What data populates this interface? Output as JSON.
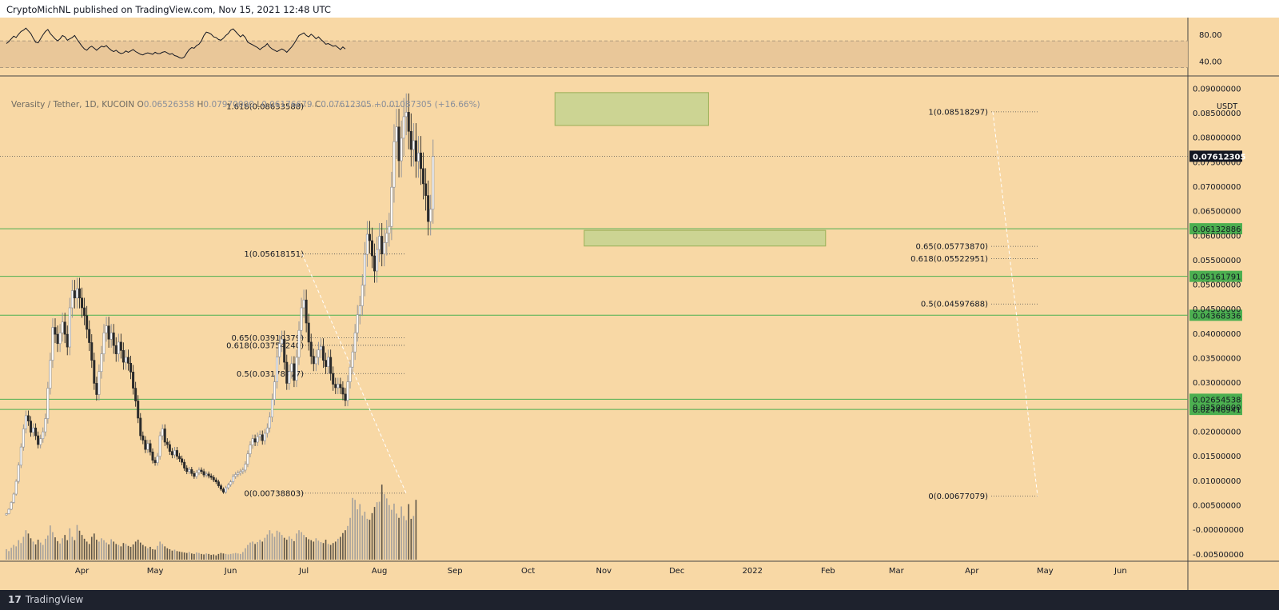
{
  "header": {
    "publisher_line": "CryptoMichNL published on TradingView.com, Nov 15, 2021 12:48 UTC"
  },
  "footer": {
    "logo_mark": "17",
    "brand": "TradingView"
  },
  "colors": {
    "background": "#f8d8a5",
    "frame": "#1e222d",
    "up": "#8a8f9a",
    "down": "#2a2a2a",
    "level_line": "#4caf50",
    "level_badge": "#4caf50",
    "price_badge": "#131722",
    "zone_fill": "#c5d490",
    "zone_stroke": "#8aa84a"
  },
  "chart_data": [
    {
      "type": "line",
      "title": "RSI",
      "ylim": [
        20,
        100
      ],
      "yticks": [
        "80.00",
        "40.00"
      ],
      "band": [
        30,
        70
      ],
      "values": [
        66,
        69,
        73,
        77,
        75,
        80,
        84,
        86,
        89,
        85,
        81,
        74,
        68,
        67,
        73,
        79,
        84,
        87,
        81,
        77,
        73,
        70,
        73,
        78,
        76,
        71,
        73,
        75,
        78,
        72,
        67,
        62,
        58,
        56,
        60,
        62,
        59,
        56,
        59,
        62,
        61,
        63,
        59,
        56,
        54,
        56,
        53,
        51,
        52,
        55,
        53,
        55,
        57,
        54,
        52,
        50,
        49,
        51,
        52,
        51,
        50,
        53,
        51,
        51,
        53,
        54,
        52,
        50,
        51,
        48,
        47,
        45,
        44,
        46,
        52,
        57,
        60,
        59,
        63,
        65,
        70,
        78,
        83,
        82,
        80,
        76,
        75,
        72,
        71,
        74,
        78,
        81,
        86,
        88,
        84,
        80,
        76,
        79,
        75,
        68,
        66,
        64,
        62,
        60,
        57,
        60,
        62,
        66,
        61,
        58,
        56,
        54,
        56,
        58,
        56,
        53,
        57,
        61,
        66,
        72,
        78,
        80,
        82,
        78,
        76,
        80,
        77,
        73,
        76,
        72,
        69,
        65,
        66,
        64,
        62,
        63,
        60,
        57,
        61,
        58
      ]
    },
    {
      "type": "candlestick",
      "title": "Verasity / Tether, 1D, KUCOIN",
      "ohlc_legend": {
        "symbol": "Verasity / Tether, 1D, KUCOIN",
        "o_label": "O",
        "o": "0.06526358",
        "h_label": "H",
        "h": "0.07970000",
        "l_label": "L",
        "l": "0.06176679",
        "c_label": "C",
        "c": "0.07612305",
        "change": "+0.01087305 (+16.66%)"
      },
      "ylabel": "USDT",
      "ylim": [
        -0.0065,
        0.0925
      ],
      "yticks": [
        "0.09000000",
        "0.08500000",
        "0.08000000",
        "0.07500000",
        "0.07000000",
        "0.06500000",
        "0.06000000",
        "0.05500000",
        "0.05000000",
        "0.04500000",
        "0.04000000",
        "0.03500000",
        "0.03000000",
        "0.02500000",
        "0.02000000",
        "0.01500000",
        "0.01000000",
        "0.00500000",
        "-0.00000000",
        "-0.00500000"
      ],
      "xticks": [
        "Apr",
        "May",
        "Jun",
        "Jul",
        "Aug",
        "Sep",
        "Oct",
        "Nov",
        "Dec",
        "2022",
        "Feb",
        "Mar",
        "Apr",
        "May",
        "Jun"
      ],
      "x_start": "2021-03-01",
      "close": [
        0.0032,
        0.0041,
        0.0055,
        0.0072,
        0.0098,
        0.0131,
        0.0168,
        0.0205,
        0.0232,
        0.0221,
        0.0198,
        0.0207,
        0.0191,
        0.0173,
        0.0185,
        0.0199,
        0.0226,
        0.0288,
        0.0345,
        0.0412,
        0.0398,
        0.0379,
        0.0401,
        0.0423,
        0.0398,
        0.0372,
        0.0452,
        0.0487,
        0.0472,
        0.0491,
        0.0472,
        0.0452,
        0.0436,
        0.0408,
        0.0381,
        0.0345,
        0.0298,
        0.0275,
        0.0322,
        0.0358,
        0.0401,
        0.0415,
        0.0388,
        0.0401,
        0.0375,
        0.0358,
        0.0382,
        0.0365,
        0.0341,
        0.0351,
        0.0339,
        0.0321,
        0.0288,
        0.0262,
        0.0227,
        0.0191,
        0.0182,
        0.0163,
        0.0175,
        0.0158,
        0.0141,
        0.0136,
        0.0149,
        0.0191,
        0.0205,
        0.0178,
        0.0173,
        0.0159,
        0.0152,
        0.0161,
        0.0149,
        0.0144,
        0.0137,
        0.0125,
        0.0118,
        0.0122,
        0.0114,
        0.0108,
        0.0116,
        0.0121,
        0.0118,
        0.0111,
        0.0113,
        0.0109,
        0.0106,
        0.0101,
        0.0097,
        0.0089,
        0.0082,
        0.0076,
        0.0085,
        0.0091,
        0.0097,
        0.0108,
        0.0112,
        0.0115,
        0.0118,
        0.0121,
        0.0133,
        0.0154,
        0.0172,
        0.0185,
        0.0178,
        0.0189,
        0.0193,
        0.0181,
        0.0196,
        0.0207,
        0.0229,
        0.0265,
        0.0301,
        0.0352,
        0.0379,
        0.0388,
        0.0341,
        0.0298,
        0.0322,
        0.0338,
        0.0304,
        0.0351,
        0.0406,
        0.0452,
        0.0468,
        0.0421,
        0.0382,
        0.0353,
        0.0338,
        0.0351,
        0.0366,
        0.0373,
        0.0345,
        0.0332,
        0.0351,
        0.0318,
        0.0296,
        0.0289,
        0.0296,
        0.0289,
        0.0276,
        0.0263,
        0.0301,
        0.0331,
        0.0362,
        0.0401,
        0.0438,
        0.0456,
        0.0498,
        0.0561,
        0.0602,
        0.0589,
        0.0558,
        0.0527,
        0.0571,
        0.0598,
        0.0562,
        0.0585,
        0.0604,
        0.0618,
        0.0698,
        0.0791,
        0.0821,
        0.0752,
        0.0798,
        0.0842,
        0.0851,
        0.0812,
        0.0775,
        0.0793,
        0.0751,
        0.0768,
        0.0736,
        0.0705,
        0.0681,
        0.0628,
        0.0653,
        0.0761
      ]
    },
    {
      "type": "bar",
      "title": "Volume",
      "values": [
        0.22,
        0.18,
        0.25,
        0.31,
        0.28,
        0.41,
        0.35,
        0.48,
        0.62,
        0.55,
        0.45,
        0.38,
        0.32,
        0.42,
        0.36,
        0.31,
        0.44,
        0.51,
        0.72,
        0.58,
        0.47,
        0.39,
        0.34,
        0.45,
        0.52,
        0.41,
        0.66,
        0.48,
        0.41,
        0.73,
        0.61,
        0.52,
        0.44,
        0.38,
        0.33,
        0.48,
        0.55,
        0.42,
        0.38,
        0.45,
        0.41,
        0.36,
        0.32,
        0.43,
        0.38,
        0.33,
        0.31,
        0.28,
        0.35,
        0.33,
        0.29,
        0.27,
        0.32,
        0.38,
        0.42,
        0.36,
        0.31,
        0.28,
        0.24,
        0.27,
        0.22,
        0.21,
        0.29,
        0.38,
        0.33,
        0.28,
        0.24,
        0.22,
        0.19,
        0.21,
        0.18,
        0.17,
        0.16,
        0.15,
        0.14,
        0.16,
        0.13,
        0.12,
        0.15,
        0.14,
        0.12,
        0.11,
        0.13,
        0.12,
        0.1,
        0.11,
        0.09,
        0.12,
        0.14,
        0.13,
        0.12,
        0.11,
        0.12,
        0.13,
        0.14,
        0.13,
        0.12,
        0.16,
        0.24,
        0.31,
        0.36,
        0.38,
        0.33,
        0.37,
        0.42,
        0.38,
        0.46,
        0.53,
        0.62,
        0.55,
        0.48,
        0.61,
        0.58,
        0.52,
        0.46,
        0.42,
        0.49,
        0.44,
        0.39,
        0.55,
        0.62,
        0.58,
        0.52,
        0.47,
        0.43,
        0.41,
        0.38,
        0.45,
        0.4,
        0.37,
        0.35,
        0.42,
        0.33,
        0.31,
        0.35,
        0.38,
        0.44,
        0.48,
        0.56,
        0.62,
        0.71,
        0.88,
        1.3,
        1.26,
        1.06,
        1.17,
        0.93,
        1.01,
        0.86,
        0.84,
        0.98,
        1.11,
        1.21,
        1.22,
        1.58,
        1.38,
        1.29,
        1.15,
        1.05,
        1.18,
        0.97,
        0.88,
        1.12,
        0.92,
        0.83,
        1.17,
        0.86,
        0.92,
        1.26
      ]
    }
  ],
  "fib_left": [
    {
      "label": "1.618(0.08633588)",
      "value": 0.08633588
    },
    {
      "label": "1(0.05618151)",
      "value": 0.05618151
    },
    {
      "label": "0.65(0.03910379)",
      "value": 0.03910379
    },
    {
      "label": "0.618(0.03754240)",
      "value": 0.0375424
    },
    {
      "label": "0.5(0.03178477)",
      "value": 0.03178477
    },
    {
      "label": "0(0.00738803)",
      "value": 0.00738803
    }
  ],
  "fib_right": [
    {
      "label": "1(0.08518297)",
      "value": 0.08518297
    },
    {
      "label": "0.65(0.05773870)",
      "value": 0.0577387
    },
    {
      "label": "0.618(0.05522951)",
      "value": 0.05522951
    },
    {
      "label": "0.5(0.04597688)",
      "value": 0.04597688
    },
    {
      "label": "0(0.00677079)",
      "value": 0.00677079
    }
  ],
  "horizontal_levels": [
    {
      "label": "0.06132886",
      "value": 0.06132886
    },
    {
      "label": "0.05161791",
      "value": 0.05161791
    },
    {
      "label": "0.04368336",
      "value": 0.04368336
    },
    {
      "label": "0.02654538",
      "value": 0.02654538
    },
    {
      "label": "0.02446941",
      "value": 0.02446941
    }
  ],
  "last_price": {
    "label": "0.07612305",
    "value": 0.07612305
  },
  "zones": [
    {
      "x0": "2021-10-12",
      "x1": "2021-12-14",
      "y0": 0.0824,
      "y1": 0.0891
    },
    {
      "x0": "2021-10-24",
      "x1": "2022-01-31",
      "y0": 0.0578,
      "y1": 0.061
    }
  ]
}
